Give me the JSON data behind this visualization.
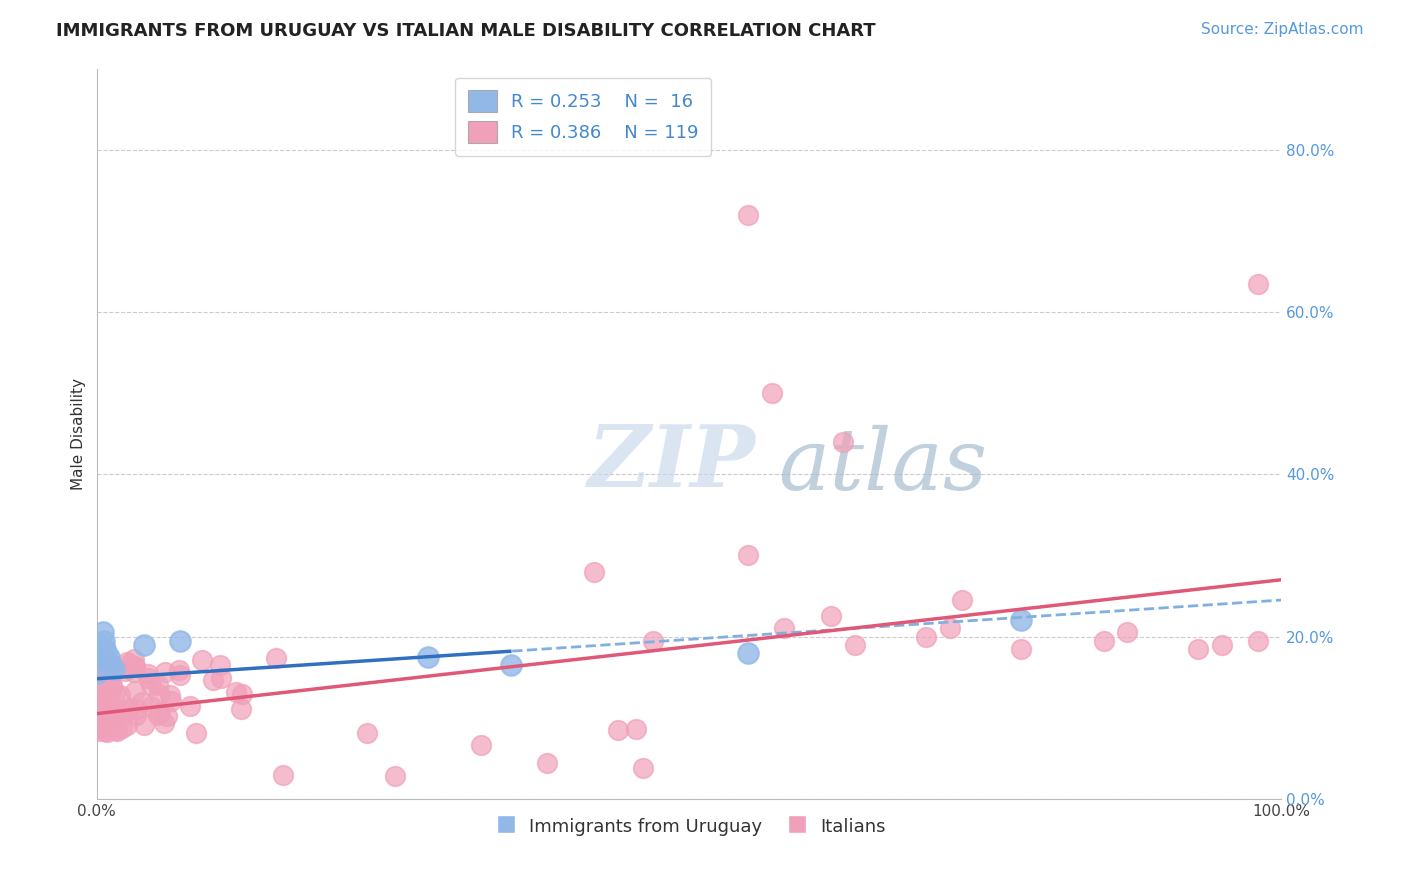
{
  "title": "IMMIGRANTS FROM URUGUAY VS ITALIAN MALE DISABILITY CORRELATION CHART",
  "source": "Source: ZipAtlas.com",
  "ylabel": "Male Disability",
  "watermark_zip": "ZIP",
  "watermark_atlas": "atlas",
  "xlim": [
    0.0,
    1.0
  ],
  "ylim": [
    0.0,
    0.9
  ],
  "x_ticks": [
    0.0,
    1.0
  ],
  "x_tick_labels": [
    "0.0%",
    "100.0%"
  ],
  "y_ticks": [
    0.0,
    0.2,
    0.4,
    0.6,
    0.8
  ],
  "y_tick_labels_right": [
    "0.0%",
    "20.0%",
    "40.0%",
    "60.0%",
    "80.0%"
  ],
  "legend_r1": "R = 0.253",
  "legend_n1": "N =  16",
  "legend_r2": "R = 0.386",
  "legend_n2": "N = 119",
  "blue_color": "#92b8e8",
  "pink_color": "#f0a0b8",
  "trend_blue_solid": "#3070c0",
  "trend_blue_dashed": "#80b0e0",
  "trend_pink": "#e05878",
  "grid_color": "#cccccc",
  "background_color": "#ffffff",
  "title_fontsize": 13,
  "axis_label_fontsize": 11,
  "tick_fontsize": 11,
  "legend_fontsize": 13,
  "source_fontsize": 11,
  "blue_trend_x0": 0.0,
  "blue_trend_y0": 0.148,
  "blue_trend_x1": 1.0,
  "blue_trend_y1": 0.245,
  "blue_trend_solid_end": 0.35,
  "pink_trend_x0": 0.0,
  "pink_trend_y0": 0.105,
  "pink_trend_x1": 1.0,
  "pink_trend_y1": 0.27
}
